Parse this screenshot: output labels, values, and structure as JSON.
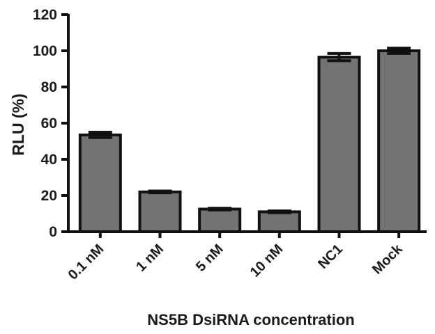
{
  "chart_data": {
    "type": "bar",
    "title": "",
    "xlabel": "NS5B DsiRNA concentration",
    "ylabel": "RLU (%)",
    "ylim": [
      0,
      120
    ],
    "yticks": [
      "0",
      "20",
      "40",
      "60",
      "80",
      "100",
      "120"
    ],
    "categories": [
      "0.1 nM",
      "1 nM",
      "5 nM",
      "10 nM",
      "NC1",
      "Mock"
    ],
    "values": [
      53.5,
      22,
      12.5,
      11,
      96.5,
      100
    ],
    "errors": [
      1.5,
      0.5,
      0.5,
      0.5,
      2,
      1.5
    ],
    "grid": false,
    "legend": "none",
    "colors": {
      "bar_fill": "#737373",
      "bar_stroke": "#111111",
      "axis": "#111111"
    }
  }
}
